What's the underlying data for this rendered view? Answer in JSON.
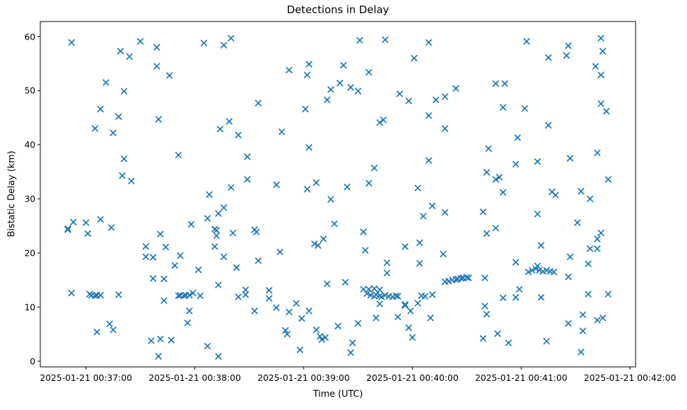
{
  "figure": {
    "background": "#ffffff",
    "marker_color": "#1f77b4",
    "spine_color": "#000000"
  },
  "chart_data": {
    "type": "scatter",
    "marker": "x",
    "title": "Detections in Delay",
    "xlabel": "Time (UTC)",
    "ylabel": "Bistatic Delay (km)",
    "legend": "none",
    "grid": false,
    "x_date": "2025-01-21",
    "x_ticks": [
      "2025-01-21 00:37:00",
      "2025-01-21 00:38:00",
      "2025-01-21 00:39:00",
      "2025-01-21 00:40:00",
      "2025-01-21 00:41:00",
      "2025-01-21 00:42:00"
    ],
    "y_ticks": [
      0,
      10,
      20,
      30,
      40,
      50,
      60
    ],
    "x_range": [
      "00:36:34.8",
      "00:42:03.1"
    ],
    "y_range": [
      -1.05,
      62.77
    ],
    "series": [
      {
        "name": "detections",
        "color": "#1f77b4",
        "points": [
          [
            "00:36:50",
            24.5
          ],
          [
            "00:36:50",
            24.3
          ],
          [
            "00:36:52",
            58.9
          ],
          [
            "00:36:52",
            12.6
          ],
          [
            "00:36:53",
            25.7
          ],
          [
            "00:37:00",
            25.6
          ],
          [
            "00:37:01",
            23.6
          ],
          [
            "00:37:02",
            12.4
          ],
          [
            "00:37:03",
            12.2
          ],
          [
            "00:37:05",
            43.0
          ],
          [
            "00:37:05",
            12.1
          ],
          [
            "00:37:06",
            12.2
          ],
          [
            "00:37:06",
            5.4
          ],
          [
            "00:37:08",
            46.6
          ],
          [
            "00:37:08",
            26.2
          ],
          [
            "00:37:08",
            12.2
          ],
          [
            "00:37:11",
            51.5
          ],
          [
            "00:37:13",
            6.9
          ],
          [
            "00:37:14",
            24.7
          ],
          [
            "00:37:15",
            42.2
          ],
          [
            "00:37:15",
            5.8
          ],
          [
            "00:37:18",
            45.2
          ],
          [
            "00:37:18",
            12.3
          ],
          [
            "00:37:19",
            57.3
          ],
          [
            "00:37:20",
            34.3
          ],
          [
            "00:37:21",
            49.9
          ],
          [
            "00:37:21",
            37.4
          ],
          [
            "00:37:24",
            56.3
          ],
          [
            "00:37:25",
            33.3
          ],
          [
            "00:37:30",
            59.1
          ],
          [
            "00:37:33",
            21.2
          ],
          [
            "00:37:33",
            19.3
          ],
          [
            "00:37:36",
            3.8
          ],
          [
            "00:37:37",
            19.2
          ],
          [
            "00:37:37",
            15.3
          ],
          [
            "00:37:39",
            58.0
          ],
          [
            "00:37:39",
            54.5
          ],
          [
            "00:37:40",
            44.7
          ],
          [
            "00:37:40",
            0.9
          ],
          [
            "00:37:41",
            23.5
          ],
          [
            "00:37:41",
            4.1
          ],
          [
            "00:37:43",
            15.2
          ],
          [
            "00:37:43",
            11.2
          ],
          [
            "00:37:44",
            21.1
          ],
          [
            "00:37:46",
            52.8
          ],
          [
            "00:37:47",
            3.9
          ],
          [
            "00:37:49",
            17.7
          ],
          [
            "00:37:51",
            38.1
          ],
          [
            "00:37:51",
            12.1
          ],
          [
            "00:37:52",
            19.5
          ],
          [
            "00:37:52",
            12.2
          ],
          [
            "00:37:54",
            12.1
          ],
          [
            "00:37:55",
            12.2
          ],
          [
            "00:37:56",
            7.1
          ],
          [
            "00:37:57",
            12.2
          ],
          [
            "00:37:57",
            9.3
          ],
          [
            "00:37:58",
            25.3
          ],
          [
            "00:37:59",
            12.6
          ],
          [
            "00:38:02",
            16.9
          ],
          [
            "00:38:03",
            12.1
          ],
          [
            "00:38:05",
            58.8
          ],
          [
            "00:38:07",
            26.4
          ],
          [
            "00:38:07",
            2.8
          ],
          [
            "00:38:08",
            30.8
          ],
          [
            "00:38:11",
            24.4
          ],
          [
            "00:38:11",
            21.2
          ],
          [
            "00:38:12",
            24.2
          ],
          [
            "00:38:12",
            23.2
          ],
          [
            "00:38:13",
            27.3
          ],
          [
            "00:38:13",
            14.1
          ],
          [
            "00:38:13",
            0.9
          ],
          [
            "00:38:14",
            42.9
          ],
          [
            "00:38:16",
            58.4
          ],
          [
            "00:38:16",
            28.4
          ],
          [
            "00:38:16",
            19.3
          ],
          [
            "00:38:19",
            44.3
          ],
          [
            "00:38:20",
            59.7
          ],
          [
            "00:38:20",
            32.1
          ],
          [
            "00:38:21",
            23.7
          ],
          [
            "00:38:23",
            17.3
          ],
          [
            "00:38:24",
            41.8
          ],
          [
            "00:38:24",
            11.9
          ],
          [
            "00:38:28",
            13.2
          ],
          [
            "00:38:28",
            12.3
          ],
          [
            "00:38:29",
            37.8
          ],
          [
            "00:38:29",
            33.6
          ],
          [
            "00:38:33",
            24.3
          ],
          [
            "00:38:33",
            9.3
          ],
          [
            "00:38:34",
            23.9
          ],
          [
            "00:38:35",
            47.7
          ],
          [
            "00:38:35",
            18.6
          ],
          [
            "00:38:41",
            13.1
          ],
          [
            "00:38:41",
            11.6
          ],
          [
            "00:38:45",
            32.6
          ],
          [
            "00:38:45",
            9.9
          ],
          [
            "00:38:47",
            20.2
          ],
          [
            "00:38:48",
            42.4
          ],
          [
            "00:38:50",
            5.7
          ],
          [
            "00:38:51",
            5.0
          ],
          [
            "00:38:52",
            53.8
          ],
          [
            "00:38:52",
            9.1
          ],
          [
            "00:38:56",
            10.7
          ],
          [
            "00:38:58",
            2.1
          ],
          [
            "00:38:59",
            7.9
          ],
          [
            "00:39:01",
            46.6
          ],
          [
            "00:39:02",
            52.9
          ],
          [
            "00:39:02",
            31.8
          ],
          [
            "00:39:03",
            54.9
          ],
          [
            "00:39:03",
            39.5
          ],
          [
            "00:39:03",
            9.3
          ],
          [
            "00:39:06",
            21.7
          ],
          [
            "00:39:07",
            33.0
          ],
          [
            "00:39:07",
            5.8
          ],
          [
            "00:39:08",
            21.4
          ],
          [
            "00:39:09",
            4.6
          ],
          [
            "00:39:10",
            4.0
          ],
          [
            "00:39:11",
            22.6
          ],
          [
            "00:39:12",
            4.4
          ],
          [
            "00:39:13",
            48.3
          ],
          [
            "00:39:13",
            14.3
          ],
          [
            "00:39:15",
            50.2
          ],
          [
            "00:39:15",
            29.9
          ],
          [
            "00:39:17",
            25.4
          ],
          [
            "00:39:19",
            6.5
          ],
          [
            "00:39:20",
            51.4
          ],
          [
            "00:39:22",
            54.7
          ],
          [
            "00:39:23",
            14.6
          ],
          [
            "00:39:24",
            32.2
          ],
          [
            "00:39:26",
            50.6
          ],
          [
            "00:39:26",
            1.6
          ],
          [
            "00:39:27",
            3.4
          ],
          [
            "00:39:30",
            49.9
          ],
          [
            "00:39:30",
            7.0
          ],
          [
            "00:39:31",
            59.3
          ],
          [
            "00:39:33",
            23.9
          ],
          [
            "00:39:33",
            13.3
          ],
          [
            "00:39:34",
            20.5
          ],
          [
            "00:39:35",
            12.5
          ],
          [
            "00:39:36",
            53.4
          ],
          [
            "00:39:36",
            32.9
          ],
          [
            "00:39:36",
            13.3
          ],
          [
            "00:39:37",
            12.2
          ],
          [
            "00:39:39",
            35.7
          ],
          [
            "00:39:39",
            13.4
          ],
          [
            "00:39:39",
            12.0
          ],
          [
            "00:39:40",
            12.3
          ],
          [
            "00:39:40",
            8.0
          ],
          [
            "00:39:42",
            44.1
          ],
          [
            "00:39:42",
            13.2
          ],
          [
            "00:39:42",
            12.1
          ],
          [
            "00:39:42",
            10.6
          ],
          [
            "00:39:43",
            11.9
          ],
          [
            "00:39:44",
            44.6
          ],
          [
            "00:39:45",
            59.4
          ],
          [
            "00:39:45",
            12.2
          ],
          [
            "00:39:46",
            18.2
          ],
          [
            "00:39:46",
            16.3
          ],
          [
            "00:39:47",
            12.0
          ],
          [
            "00:39:49",
            11.9
          ],
          [
            "00:39:51",
            12.1
          ],
          [
            "00:39:52",
            12.0
          ],
          [
            "00:39:52",
            8.2
          ],
          [
            "00:39:53",
            49.4
          ],
          [
            "00:39:56",
            21.2
          ],
          [
            "00:39:56",
            10.5
          ],
          [
            "00:39:56",
            10.3
          ],
          [
            "00:39:58",
            48.1
          ],
          [
            "00:39:58",
            6.2
          ],
          [
            "00:39:59",
            9.3
          ],
          [
            "00:40:00",
            4.4
          ],
          [
            "00:40:01",
            56.0
          ],
          [
            "00:40:03",
            32.0
          ],
          [
            "00:40:03",
            10.7
          ],
          [
            "00:40:04",
            21.9
          ],
          [
            "00:40:04",
            18.1
          ],
          [
            "00:40:05",
            12.1
          ],
          [
            "00:40:06",
            26.8
          ],
          [
            "00:40:07",
            12.0
          ],
          [
            "00:40:09",
            58.9
          ],
          [
            "00:40:09",
            45.4
          ],
          [
            "00:40:09",
            37.1
          ],
          [
            "00:40:10",
            8.0
          ],
          [
            "00:40:11",
            28.7
          ],
          [
            "00:40:11",
            12.3
          ],
          [
            "00:40:13",
            48.3
          ],
          [
            "00:40:17",
            19.8
          ],
          [
            "00:40:18",
            48.9
          ],
          [
            "00:40:18",
            43.0
          ],
          [
            "00:40:18",
            27.5
          ],
          [
            "00:40:18",
            14.7
          ],
          [
            "00:40:20",
            14.8
          ],
          [
            "00:40:22",
            15.0
          ],
          [
            "00:40:24",
            50.4
          ],
          [
            "00:40:24",
            15.1
          ],
          [
            "00:40:25",
            15.2
          ],
          [
            "00:40:27",
            15.3
          ],
          [
            "00:40:28",
            15.4
          ],
          [
            "00:40:30",
            15.5
          ],
          [
            "00:40:31",
            15.4
          ],
          [
            "00:40:39",
            27.6
          ],
          [
            "00:40:39",
            4.2
          ],
          [
            "00:40:40",
            15.4
          ],
          [
            "00:40:40",
            10.2
          ],
          [
            "00:40:41",
            34.9
          ],
          [
            "00:40:41",
            23.6
          ],
          [
            "00:40:41",
            8.7
          ],
          [
            "00:40:42",
            39.3
          ],
          [
            "00:40:46",
            51.3
          ],
          [
            "00:40:46",
            33.6
          ],
          [
            "00:40:46",
            24.6
          ],
          [
            "00:40:47",
            5.1
          ],
          [
            "00:40:48",
            34.0
          ],
          [
            "00:40:50",
            46.9
          ],
          [
            "00:40:50",
            31.2
          ],
          [
            "00:40:50",
            11.7
          ],
          [
            "00:40:51",
            51.3
          ],
          [
            "00:40:53",
            3.4
          ],
          [
            "00:40:57",
            36.4
          ],
          [
            "00:40:57",
            18.3
          ],
          [
            "00:40:57",
            11.8
          ],
          [
            "00:40:58",
            41.3
          ],
          [
            "00:40:59",
            13.3
          ],
          [
            "00:41:02",
            46.7
          ],
          [
            "00:41:03",
            59.1
          ],
          [
            "00:41:04",
            16.5
          ],
          [
            "00:41:06",
            16.8
          ],
          [
            "00:41:08",
            17.1
          ],
          [
            "00:41:09",
            36.9
          ],
          [
            "00:41:09",
            27.2
          ],
          [
            "00:41:09",
            17.6
          ],
          [
            "00:41:10",
            16.8
          ],
          [
            "00:41:11",
            21.4
          ],
          [
            "00:41:11",
            11.8
          ],
          [
            "00:41:12",
            16.6
          ],
          [
            "00:41:14",
            16.8
          ],
          [
            "00:41:14",
            3.7
          ],
          [
            "00:41:15",
            56.1
          ],
          [
            "00:41:15",
            43.6
          ],
          [
            "00:41:16",
            16.6
          ],
          [
            "00:41:17",
            31.3
          ],
          [
            "00:41:18",
            16.5
          ],
          [
            "00:41:19",
            30.7
          ],
          [
            "00:41:25",
            56.5
          ],
          [
            "00:41:26",
            58.3
          ],
          [
            "00:41:26",
            15.6
          ],
          [
            "00:41:26",
            7.0
          ],
          [
            "00:41:27",
            37.5
          ],
          [
            "00:41:27",
            19.3
          ],
          [
            "00:41:31",
            25.6
          ],
          [
            "00:41:33",
            31.4
          ],
          [
            "00:41:33",
            1.7
          ],
          [
            "00:41:34",
            8.6
          ],
          [
            "00:41:34",
            5.6
          ],
          [
            "00:41:37",
            18.0
          ],
          [
            "00:41:37",
            12.4
          ],
          [
            "00:41:38",
            30.0
          ],
          [
            "00:41:38",
            20.8
          ],
          [
            "00:41:41",
            54.5
          ],
          [
            "00:41:42",
            38.5
          ],
          [
            "00:41:42",
            22.6
          ],
          [
            "00:41:42",
            20.8
          ],
          [
            "00:41:42",
            7.6
          ],
          [
            "00:41:44",
            59.7
          ],
          [
            "00:41:44",
            52.9
          ],
          [
            "00:41:44",
            47.6
          ],
          [
            "00:41:44",
            23.7
          ],
          [
            "00:41:45",
            57.3
          ],
          [
            "00:41:45",
            8.0
          ],
          [
            "00:41:47",
            46.2
          ],
          [
            "00:41:48",
            33.6
          ],
          [
            "00:41:48",
            12.4
          ]
        ]
      }
    ]
  }
}
